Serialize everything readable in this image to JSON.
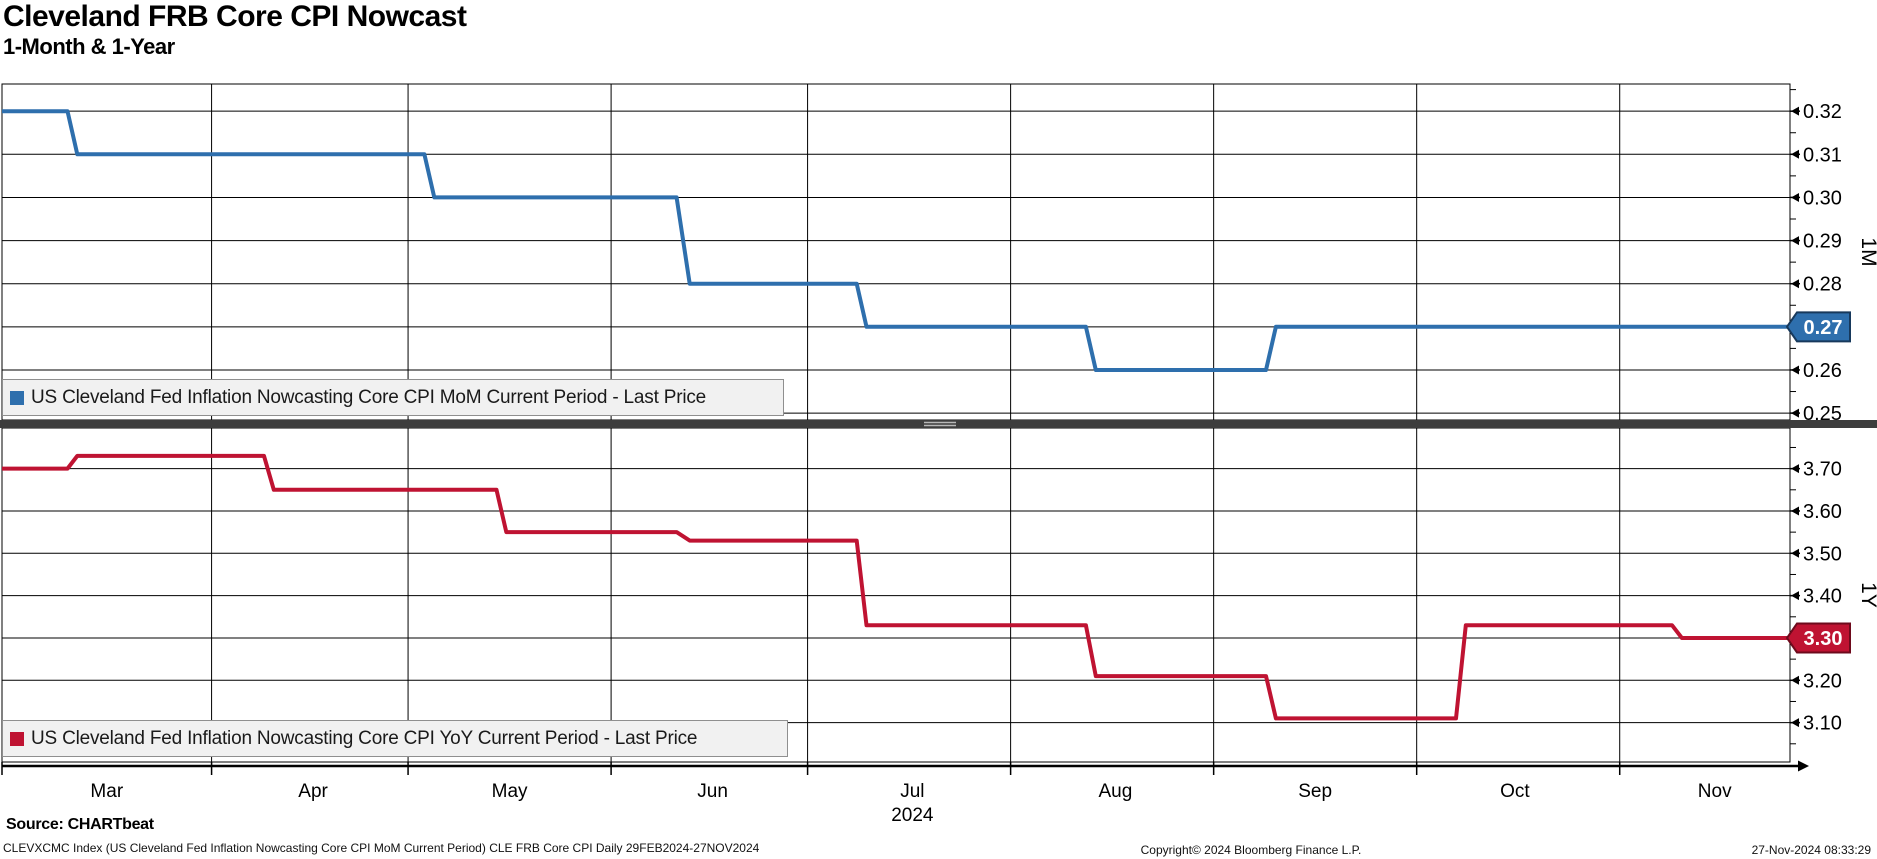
{
  "header": {
    "title": "Cleveland FRB Core CPI Nowcast",
    "subtitle": "1-Month & 1-Year"
  },
  "chart_data": [
    {
      "type": "line",
      "panel_axis_label": "1M",
      "legend": "US Cleveland Fed Inflation Nowcasting Core CPI MoM Current Period - Last Price",
      "line_color": "#2e6fad",
      "badge_fill": "#2e6fad",
      "badge_border": "#17395c",
      "last_price": "0.27",
      "ylim": [
        0.2484,
        0.3263
      ],
      "ytick_labels": [
        "0.32",
        "0.31",
        "0.30",
        "0.29",
        "0.28",
        "0.27",
        "0.26",
        "0.25"
      ],
      "minor_tick_step": 0.005,
      "points_day_value": [
        [
          0,
          0.32
        ],
        [
          10,
          0.32
        ],
        [
          11.5,
          0.31
        ],
        [
          64.5,
          0.31
        ],
        [
          66,
          0.3
        ],
        [
          103,
          0.3
        ],
        [
          105,
          0.28
        ],
        [
          130.5,
          0.28
        ],
        [
          132,
          0.27
        ],
        [
          165.5,
          0.27
        ],
        [
          167,
          0.26
        ],
        [
          193,
          0.26
        ],
        [
          194.5,
          0.27
        ],
        [
          273,
          0.27
        ]
      ]
    },
    {
      "type": "line",
      "panel_axis_label": "1Y",
      "legend": "US Cleveland Fed Inflation Nowcasting Core CPI YoY Current Period - Last Price",
      "line_color": "#bf1332",
      "badge_fill": "#bf1332",
      "badge_border": "#6e0a1c",
      "last_price": "3.30",
      "ylim": [
        3.007,
        3.796
      ],
      "ytick_labels": [
        "3.70",
        "3.60",
        "3.50",
        "3.40",
        "3.30",
        "3.20",
        "3.10"
      ],
      "minor_tick_step": 0.05,
      "points_day_value": [
        [
          0,
          3.7
        ],
        [
          10,
          3.7
        ],
        [
          11.5,
          3.73
        ],
        [
          40,
          3.73
        ],
        [
          41.5,
          3.65
        ],
        [
          75.5,
          3.65
        ],
        [
          77,
          3.55
        ],
        [
          103,
          3.55
        ],
        [
          105,
          3.53
        ],
        [
          130.5,
          3.53
        ],
        [
          132,
          3.33
        ],
        [
          165.5,
          3.33
        ],
        [
          167,
          3.21
        ],
        [
          193,
          3.21
        ],
        [
          194.5,
          3.11
        ],
        [
          222,
          3.11
        ],
        [
          223.5,
          3.33
        ],
        [
          255,
          3.33
        ],
        [
          256.5,
          3.3
        ],
        [
          273,
          3.3
        ]
      ]
    }
  ],
  "x_axis": {
    "range_start": "29FEB2024",
    "range_end": "27NOV2024",
    "total_days": 273,
    "month_labels": [
      {
        "label": "Mar",
        "day": 16
      },
      {
        "label": "Apr",
        "day": 47.5
      },
      {
        "label": "May",
        "day": 77.5
      },
      {
        "label": "Jun",
        "day": 108.5
      },
      {
        "label": "Jul",
        "day": 139
      },
      {
        "label": "Aug",
        "day": 170
      },
      {
        "label": "Sep",
        "day": 200.5
      },
      {
        "label": "Oct",
        "day": 231
      },
      {
        "label": "Nov",
        "day": 261.5
      }
    ],
    "year_label": "2024",
    "year_label_day": 139,
    "month_gridline_days": [
      32,
      62,
      93,
      123,
      154,
      185,
      216,
      247
    ]
  },
  "footer": {
    "source": "Source: CHARTbeat",
    "security_line": "CLEVXCMC Index (US Cleveland Fed Inflation Nowcasting Core CPI MoM Current Period) CLE FRB Core CPI  Daily 29FEB2024-27NOV2024",
    "copyright": "Copyright© 2024 Bloomberg Finance L.P.",
    "timestamp": "27-Nov-2024 08:33:29"
  }
}
